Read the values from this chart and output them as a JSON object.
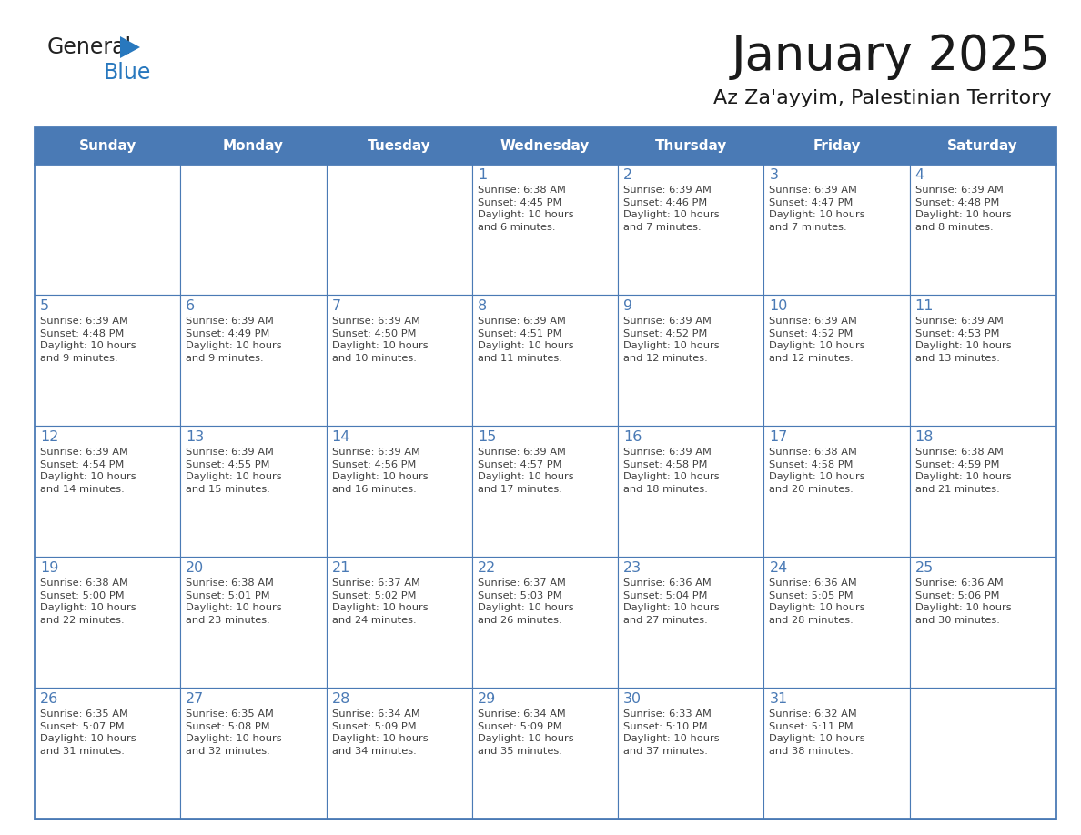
{
  "title": "January 2025",
  "subtitle": "Az Za'ayyim, Palestinian Territory",
  "days_of_week": [
    "Sunday",
    "Monday",
    "Tuesday",
    "Wednesday",
    "Thursday",
    "Friday",
    "Saturday"
  ],
  "header_bg": "#4a7ab5",
  "header_text": "#FFFFFF",
  "cell_bg": "#FFFFFF",
  "border_color": "#4a7ab5",
  "day_num_color": "#4a7ab5",
  "cell_text_color": "#404040",
  "title_color": "#1a1a1a",
  "logo_general_color": "#222222",
  "logo_blue_color": "#2878be",
  "weeks": [
    [
      {
        "day": null,
        "data": null
      },
      {
        "day": null,
        "data": null
      },
      {
        "day": null,
        "data": null
      },
      {
        "day": 1,
        "data": "Sunrise: 6:38 AM\nSunset: 4:45 PM\nDaylight: 10 hours\nand 6 minutes."
      },
      {
        "day": 2,
        "data": "Sunrise: 6:39 AM\nSunset: 4:46 PM\nDaylight: 10 hours\nand 7 minutes."
      },
      {
        "day": 3,
        "data": "Sunrise: 6:39 AM\nSunset: 4:47 PM\nDaylight: 10 hours\nand 7 minutes."
      },
      {
        "day": 4,
        "data": "Sunrise: 6:39 AM\nSunset: 4:48 PM\nDaylight: 10 hours\nand 8 minutes."
      }
    ],
    [
      {
        "day": 5,
        "data": "Sunrise: 6:39 AM\nSunset: 4:48 PM\nDaylight: 10 hours\nand 9 minutes."
      },
      {
        "day": 6,
        "data": "Sunrise: 6:39 AM\nSunset: 4:49 PM\nDaylight: 10 hours\nand 9 minutes."
      },
      {
        "day": 7,
        "data": "Sunrise: 6:39 AM\nSunset: 4:50 PM\nDaylight: 10 hours\nand 10 minutes."
      },
      {
        "day": 8,
        "data": "Sunrise: 6:39 AM\nSunset: 4:51 PM\nDaylight: 10 hours\nand 11 minutes."
      },
      {
        "day": 9,
        "data": "Sunrise: 6:39 AM\nSunset: 4:52 PM\nDaylight: 10 hours\nand 12 minutes."
      },
      {
        "day": 10,
        "data": "Sunrise: 6:39 AM\nSunset: 4:52 PM\nDaylight: 10 hours\nand 12 minutes."
      },
      {
        "day": 11,
        "data": "Sunrise: 6:39 AM\nSunset: 4:53 PM\nDaylight: 10 hours\nand 13 minutes."
      }
    ],
    [
      {
        "day": 12,
        "data": "Sunrise: 6:39 AM\nSunset: 4:54 PM\nDaylight: 10 hours\nand 14 minutes."
      },
      {
        "day": 13,
        "data": "Sunrise: 6:39 AM\nSunset: 4:55 PM\nDaylight: 10 hours\nand 15 minutes."
      },
      {
        "day": 14,
        "data": "Sunrise: 6:39 AM\nSunset: 4:56 PM\nDaylight: 10 hours\nand 16 minutes."
      },
      {
        "day": 15,
        "data": "Sunrise: 6:39 AM\nSunset: 4:57 PM\nDaylight: 10 hours\nand 17 minutes."
      },
      {
        "day": 16,
        "data": "Sunrise: 6:39 AM\nSunset: 4:58 PM\nDaylight: 10 hours\nand 18 minutes."
      },
      {
        "day": 17,
        "data": "Sunrise: 6:38 AM\nSunset: 4:58 PM\nDaylight: 10 hours\nand 20 minutes."
      },
      {
        "day": 18,
        "data": "Sunrise: 6:38 AM\nSunset: 4:59 PM\nDaylight: 10 hours\nand 21 minutes."
      }
    ],
    [
      {
        "day": 19,
        "data": "Sunrise: 6:38 AM\nSunset: 5:00 PM\nDaylight: 10 hours\nand 22 minutes."
      },
      {
        "day": 20,
        "data": "Sunrise: 6:38 AM\nSunset: 5:01 PM\nDaylight: 10 hours\nand 23 minutes."
      },
      {
        "day": 21,
        "data": "Sunrise: 6:37 AM\nSunset: 5:02 PM\nDaylight: 10 hours\nand 24 minutes."
      },
      {
        "day": 22,
        "data": "Sunrise: 6:37 AM\nSunset: 5:03 PM\nDaylight: 10 hours\nand 26 minutes."
      },
      {
        "day": 23,
        "data": "Sunrise: 6:36 AM\nSunset: 5:04 PM\nDaylight: 10 hours\nand 27 minutes."
      },
      {
        "day": 24,
        "data": "Sunrise: 6:36 AM\nSunset: 5:05 PM\nDaylight: 10 hours\nand 28 minutes."
      },
      {
        "day": 25,
        "data": "Sunrise: 6:36 AM\nSunset: 5:06 PM\nDaylight: 10 hours\nand 30 minutes."
      }
    ],
    [
      {
        "day": 26,
        "data": "Sunrise: 6:35 AM\nSunset: 5:07 PM\nDaylight: 10 hours\nand 31 minutes."
      },
      {
        "day": 27,
        "data": "Sunrise: 6:35 AM\nSunset: 5:08 PM\nDaylight: 10 hours\nand 32 minutes."
      },
      {
        "day": 28,
        "data": "Sunrise: 6:34 AM\nSunset: 5:09 PM\nDaylight: 10 hours\nand 34 minutes."
      },
      {
        "day": 29,
        "data": "Sunrise: 6:34 AM\nSunset: 5:09 PM\nDaylight: 10 hours\nand 35 minutes."
      },
      {
        "day": 30,
        "data": "Sunrise: 6:33 AM\nSunset: 5:10 PM\nDaylight: 10 hours\nand 37 minutes."
      },
      {
        "day": 31,
        "data": "Sunrise: 6:32 AM\nSunset: 5:11 PM\nDaylight: 10 hours\nand 38 minutes."
      },
      {
        "day": null,
        "data": null
      }
    ]
  ]
}
